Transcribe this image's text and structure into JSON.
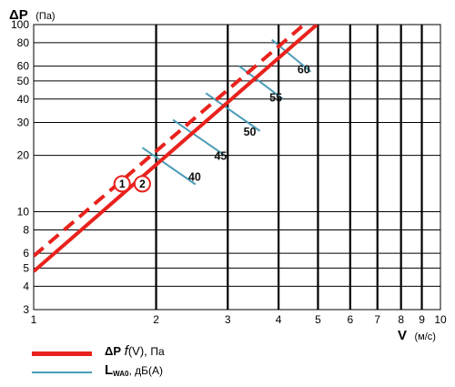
{
  "chart_data": {
    "type": "line",
    "x_scale": "log",
    "y_scale": "log",
    "xlim": [
      1,
      10
    ],
    "ylim": [
      3,
      100
    ],
    "grid": true,
    "x_ticks": [
      1,
      2,
      3,
      4,
      5,
      6,
      7,
      8,
      9,
      10
    ],
    "y_ticks": [
      3,
      4,
      5,
      6,
      8,
      10,
      20,
      30,
      40,
      50,
      60,
      80,
      100
    ],
    "y_label": {
      "symbol": "ΔP",
      "unit": "(Па)"
    },
    "x_label": {
      "symbol": "V",
      "unit": "(м/с)"
    },
    "series": [
      {
        "marker": "1",
        "color": "#e8221c",
        "style": "dashed",
        "points": [
          [
            1,
            5.8
          ],
          [
            4.62,
            100
          ]
        ]
      },
      {
        "marker": "2",
        "color": "#e8221c",
        "style": "solid",
        "points": [
          [
            1,
            4.8
          ],
          [
            4.97,
            100
          ]
        ]
      }
    ],
    "noise_levels": [
      {
        "label": "40",
        "points": [
          [
            1.85,
            22
          ],
          [
            2.5,
            14
          ]
        ],
        "label_at": [
          2.4,
          15.5
        ]
      },
      {
        "label": "45",
        "points": [
          [
            2.2,
            31
          ],
          [
            2.95,
            20
          ]
        ],
        "label_at": [
          2.78,
          20
        ]
      },
      {
        "label": "50",
        "points": [
          [
            2.65,
            43
          ],
          [
            3.6,
            27
          ]
        ],
        "label_at": [
          3.28,
          27
        ]
      },
      {
        "label": "55",
        "points": [
          [
            3.2,
            60
          ],
          [
            4.1,
            40
          ]
        ],
        "label_at": [
          3.8,
          41
        ]
      },
      {
        "label": "60",
        "points": [
          [
            3.85,
            83
          ],
          [
            4.8,
            56
          ]
        ],
        "label_at": [
          4.45,
          58
        ]
      }
    ],
    "colors": {
      "pressure": "#e8221c",
      "noise": "#4a9cb7",
      "grid": "#000000"
    }
  },
  "legend": {
    "pressure": {
      "symbol": "ΔP",
      "func": "f",
      "arg": "(V),",
      "unit": "Па"
    },
    "noise": {
      "symbol": "L",
      "sub": "WA0",
      "unit": ", дБ(А)"
    }
  }
}
